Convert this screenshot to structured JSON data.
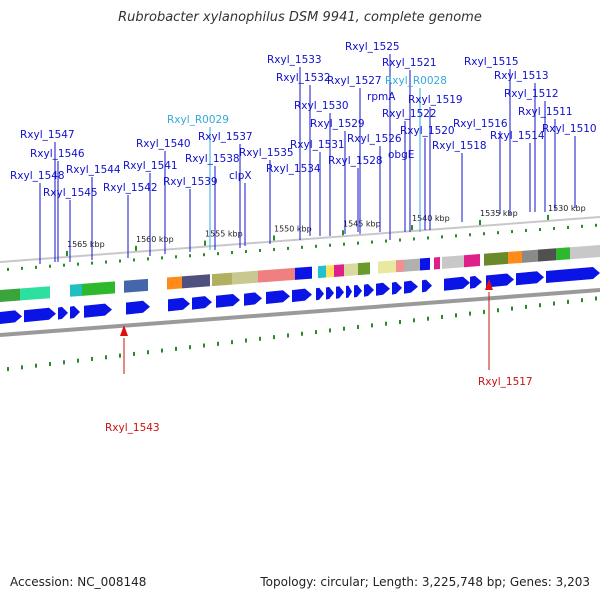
{
  "title": "Rubrobacter xylanophilus DSM 9941, complete genome",
  "footer": {
    "accession": "Accession: NC_008148",
    "summary": "Topology: circular; Length: 3,225,748 bp; Genes: 3,203"
  },
  "colors": {
    "label": "#1010cc",
    "rna_label": "#33aadd",
    "highlight_label": "#cc1111",
    "cds_arrow": "#0a14e6",
    "tick_major": "#2a8a2a",
    "backbone_edge": "#9a9a9a"
  },
  "scale_ticks": [
    "1530 kbp",
    "1535 kbp",
    "1540 kbp",
    "1545 kbp",
    "1550 kbp",
    "1555 kbp",
    "1560 kbp",
    "1565 kbp"
  ],
  "gene_labels": [
    {
      "name": "Rxyl_1525",
      "type": "cds"
    },
    {
      "name": "Rxyl_1533",
      "type": "cds"
    },
    {
      "name": "Rxyl_1521",
      "type": "cds"
    },
    {
      "name": "Rxyl_1515",
      "type": "cds"
    },
    {
      "name": "Rxyl_1532",
      "type": "cds"
    },
    {
      "name": "Rxyl_1527",
      "type": "cds"
    },
    {
      "name": "Rxyl_R0028",
      "type": "rna"
    },
    {
      "name": "Rxyl_1513",
      "type": "cds"
    },
    {
      "name": "rpmA",
      "type": "cds"
    },
    {
      "name": "Rxyl_1519",
      "type": "cds"
    },
    {
      "name": "Rxyl_1512",
      "type": "cds"
    },
    {
      "name": "Rxyl_1530",
      "type": "cds"
    },
    {
      "name": "Rxyl_1522",
      "type": "cds"
    },
    {
      "name": "Rxyl_1511",
      "type": "cds"
    },
    {
      "name": "Rxyl_R0029",
      "type": "rna"
    },
    {
      "name": "Rxyl_1529",
      "type": "cds"
    },
    {
      "name": "Rxyl_1516",
      "type": "cds"
    },
    {
      "name": "Rxyl_1510",
      "type": "cds"
    },
    {
      "name": "Rxyl_1547",
      "type": "cds"
    },
    {
      "name": "Rxyl_1537",
      "type": "cds"
    },
    {
      "name": "Rxyl_1526",
      "type": "cds"
    },
    {
      "name": "Rxyl_1520",
      "type": "cds"
    },
    {
      "name": "Rxyl_1514",
      "type": "cds"
    },
    {
      "name": "Rxyl_1540",
      "type": "cds"
    },
    {
      "name": "Rxyl_1531",
      "type": "cds"
    },
    {
      "name": "Rxyl_1518",
      "type": "cds"
    },
    {
      "name": "Rxyl_1546",
      "type": "cds"
    },
    {
      "name": "Rxyl_1535",
      "type": "cds"
    },
    {
      "name": "Rxyl_1538",
      "type": "cds"
    },
    {
      "name": "obgE",
      "type": "cds"
    },
    {
      "name": "Rxyl_1528",
      "type": "cds"
    },
    {
      "name": "Rxyl_1541",
      "type": "cds"
    },
    {
      "name": "Rxyl_1544",
      "type": "cds"
    },
    {
      "name": "Rxyl_1534",
      "type": "cds"
    },
    {
      "name": "clpX",
      "type": "cds"
    },
    {
      "name": "Rxyl_1548",
      "type": "cds"
    },
    {
      "name": "Rxyl_1539",
      "type": "cds"
    },
    {
      "name": "Rxyl_1542",
      "type": "cds"
    },
    {
      "name": "Rxyl_1545",
      "type": "cds"
    },
    {
      "name": "Rxyl_1543",
      "type": "highlight"
    },
    {
      "name": "Rxyl_1517",
      "type": "highlight"
    }
  ]
}
